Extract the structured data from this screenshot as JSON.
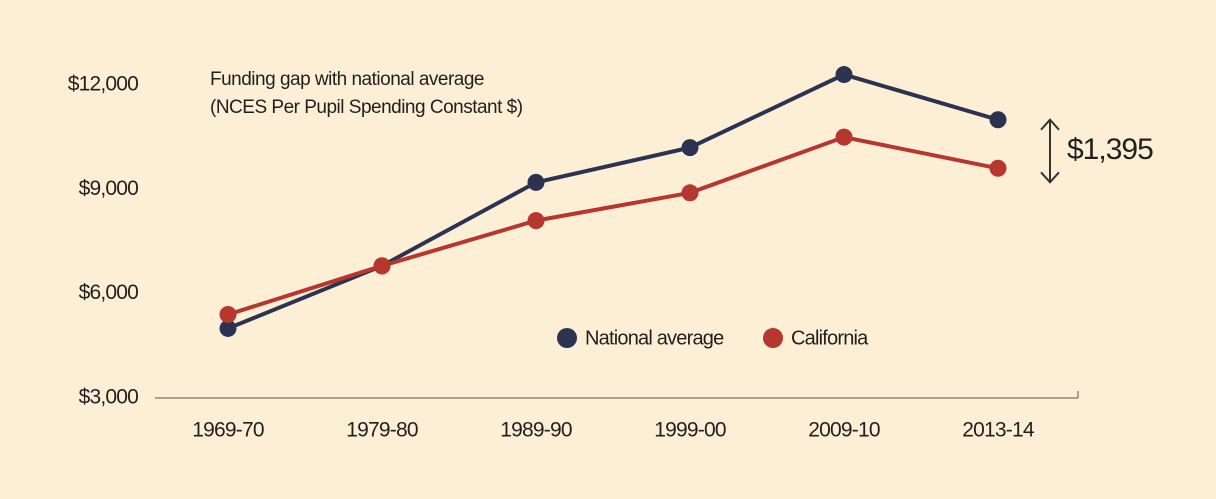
{
  "chart_data": {
    "type": "line",
    "title": "Funding gap with national average",
    "subtitle": "(NCES Per Pupil Spending Constant $)",
    "categories": [
      "1969-70",
      "1979-80",
      "1989-90",
      "1999-00",
      "2009-10",
      "2013-14"
    ],
    "series": [
      {
        "name": "National average",
        "color": "#2c3350",
        "values": [
          5000,
          6800,
          9200,
          10200,
          12300,
          11000
        ]
      },
      {
        "name": "California",
        "color": "#b5372e",
        "values": [
          5400,
          6800,
          8100,
          8900,
          10500,
          9605
        ]
      }
    ],
    "ylim": [
      3000,
      12500
    ],
    "yticks": [
      {
        "value": 3000,
        "label": "$3,000"
      },
      {
        "value": 6000,
        "label": "$6,000"
      },
      {
        "value": 9000,
        "label": "$9,000"
      },
      {
        "value": 12000,
        "label": "$12,000"
      }
    ],
    "grid": false,
    "legend": "bottom-center",
    "annotation": "$1,395"
  }
}
